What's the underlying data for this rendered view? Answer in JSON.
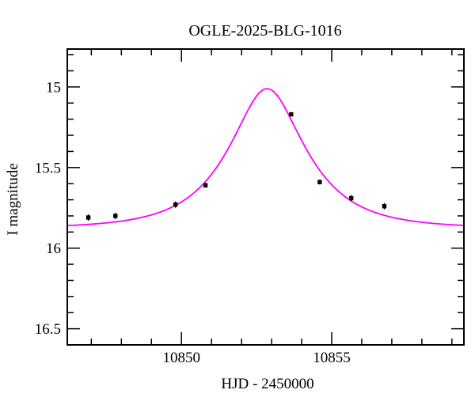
{
  "colors": {
    "background": "#ffffff",
    "axis": "#000000",
    "curve": "#ff00ff",
    "points": "#000000"
  },
  "chart_data": {
    "type": "scatter",
    "title": "OGLE-2025-BLG-1016",
    "xlabel": "HJD - 2450000",
    "ylabel": "I magnitude",
    "xlim": [
      10846.2,
      10859.4
    ],
    "ylim": [
      14.765,
      16.6
    ],
    "y_axis_inverted": true,
    "grid": false,
    "legend": "none",
    "x_major_ticks": [
      10850,
      10855
    ],
    "x_major_tick_labels": [
      "10850",
      "10855"
    ],
    "x_minor_tick_step": 1,
    "y_major_ticks": [
      15,
      15.5,
      16,
      16.5
    ],
    "y_major_tick_labels": [
      "15",
      "15.5",
      "16",
      "16.5"
    ],
    "y_minor_tick_step": 0.1,
    "points": [
      {
        "t": 10846.9,
        "mag": 15.81,
        "err": 0.02
      },
      {
        "t": 10847.8,
        "mag": 15.8,
        "err": 0.02
      },
      {
        "t": 10849.8,
        "mag": 15.73,
        "err": 0.02
      },
      {
        "t": 10850.8,
        "mag": 15.61,
        "err": 0.015
      },
      {
        "t": 10853.65,
        "mag": 15.17,
        "err": 0.012
      },
      {
        "t": 10854.6,
        "mag": 15.59,
        "err": 0.015
      },
      {
        "t": 10855.65,
        "mag": 15.69,
        "err": 0.02
      },
      {
        "t": 10856.75,
        "mag": 15.74,
        "err": 0.02
      }
    ],
    "model": {
      "type": "paczynski",
      "t0": 10852.85,
      "u0": 0.49,
      "tE": 2.2,
      "I0": 15.877,
      "peak_mag": 15.01
    }
  }
}
